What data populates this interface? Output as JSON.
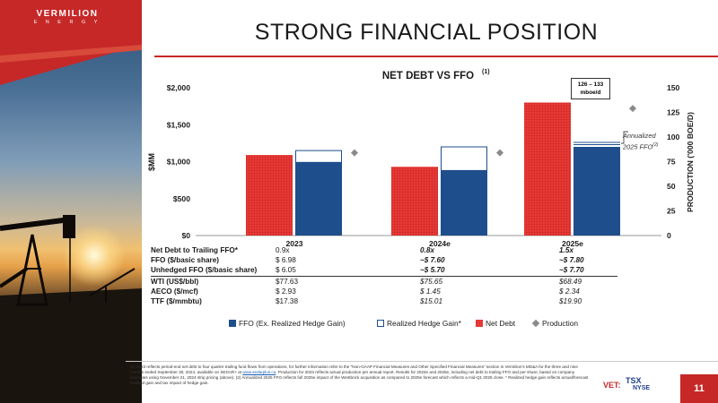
{
  "slide": {
    "title": "STRONG FINANCIAL POSITION",
    "brand_name": "VERMILION",
    "brand_sub": "E N E R G Y",
    "page_number": "11",
    "ticker": "VET:",
    "exchange_1": "TSX",
    "exchange_2": "NYSE",
    "colors": {
      "accent": "#c62828",
      "navy": "#1f4e8c",
      "netdebt": "#e53935"
    }
  },
  "footnote": {
    "part1": "(1) 2023 reflects period-end net debt to four quarter trailing fund flows from operations, for further information refer to the \"Non-GAAP Financial Measures and Other Specified Financial Measures\" section in Vermilion's MD&A for the three and nine months ended September 30, 2024, available on SEDAR+ at ",
    "link": "www.sedarplus.ca",
    "part2": ". Production for 2023 reflects actual production per annual report. Results for 2024e and 2025e, including net debt to trailing FFO and per share, based on company estimates using November 21, 2024 strip pricing (above). (2) Annualized 2025 FFO reflects full 2025e impact of the Westbrick acquisition as compared to 2025e forecast which reflects a mid-Q1 2025 close. * Realized hedge gain reflects actual/forecast realized gain and tax impact of hedge gain."
  },
  "chart_data": {
    "type": "bar",
    "title": "NET DEBT VS FFO",
    "title_sup": "(1)",
    "categories": [
      "2023",
      "2024e",
      "2025e"
    ],
    "ylabel": "$MM",
    "y2label": "PRODUCTION ('000 BOE/D)",
    "ylim": [
      0,
      2000
    ],
    "y_ticks": [
      "$0",
      "$500",
      "$1,000",
      "$1,500",
      "$2,000"
    ],
    "y_tick_values": [
      0,
      500,
      1000,
      1500,
      2000
    ],
    "y2lim": [
      0,
      150
    ],
    "y2_ticks": [
      "0",
      "25",
      "50",
      "75",
      "100",
      "125",
      "150"
    ],
    "y2_tick_values": [
      0,
      25,
      50,
      75,
      100,
      125,
      150
    ],
    "series": [
      {
        "name": "FFO (Ex. Realized Hedge Gain)",
        "values": [
          990,
          880,
          1200
        ],
        "color": "#1f4e8c"
      },
      {
        "name": "Realized Hedge Gain*",
        "values": [
          160,
          320,
          0
        ],
        "color": "#ffffff"
      },
      {
        "name": "Net Debt",
        "values": [
          1090,
          930,
          1800
        ],
        "color": "#e53935"
      },
      {
        "name": "Production",
        "values": [
          84,
          84,
          129
        ],
        "axis": "secondary",
        "marker": "diamond",
        "color": "#8a8a8a"
      }
    ],
    "annualized_ffo": {
      "label_1": "Annualized",
      "label_2": "2025 FFO",
      "label_sup": "(2)",
      "value": 1260
    },
    "callout": {
      "line_1": "126 – 133",
      "line_2": "mboe/d"
    },
    "legend_position": "bottom",
    "grid": false
  },
  "table": {
    "rows": [
      {
        "label": "Net Debt to Trailing FFO*",
        "v2023": "0.9x",
        "v2024e": "0.8x",
        "v2025e": "1.5x",
        "bold_est": true
      },
      {
        "label": "FFO ($/basic share)",
        "v2023": "$  6.98",
        "v2024e": "~$  7.60",
        "v2025e": "~$  7.80",
        "bold_est": true
      },
      {
        "label": "Unhedged FFO ($/basic share)",
        "v2023": "$  6.05",
        "v2024e": "~$  5.70",
        "v2025e": "~$  7.70",
        "bold_est": true
      },
      {
        "label": "WTI (US$/bbl)",
        "v2023": "$77.63",
        "v2024e": "$75.65",
        "v2025e": "$68.49",
        "bold_est": false
      },
      {
        "label": "AECO ($/mcf)",
        "v2023": "$  2.93",
        "v2024e": "$  1.45",
        "v2025e": "$  2.34",
        "bold_est": false
      },
      {
        "label": "TTF ($/mmbtu)",
        "v2023": "$17.38",
        "v2024e": "$15.01",
        "v2025e": "$19.90",
        "bold_est": false
      }
    ]
  }
}
